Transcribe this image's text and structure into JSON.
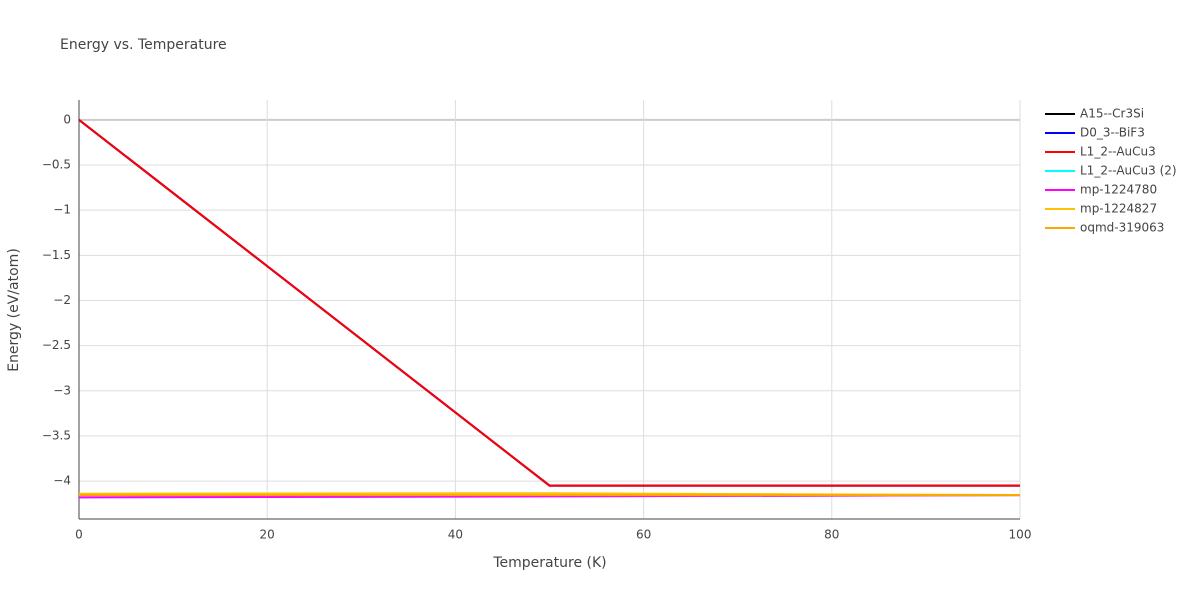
{
  "chart_data": {
    "type": "line",
    "title": "Energy vs. Temperature",
    "x_label": "Temperature (K)",
    "y_label": "Energy (eV/atom)",
    "x": [
      0,
      50,
      100
    ],
    "series": [
      {
        "name": "A15--Cr3Si",
        "color": "#000000",
        "values": [
          0,
          -4.05,
          -4.05
        ]
      },
      {
        "name": "D0_3--BiF3",
        "color": "#0000ff",
        "values": [
          0,
          -4.05,
          -4.05
        ]
      },
      {
        "name": "L1_2--AuCu3",
        "color": "#ff0000",
        "values": [
          0,
          -4.05,
          -4.05
        ]
      },
      {
        "name": "L1_2--AuCu3 (2)",
        "color": "#00ffff",
        "values": [
          -4.18,
          -4.17,
          -4.155
        ]
      },
      {
        "name": "mp-1224780",
        "color": "#ff00ff",
        "values": [
          -4.18,
          -4.17,
          -4.155
        ]
      },
      {
        "name": "mp-1224827",
        "color": "#ffc000",
        "values": [
          -4.14,
          -4.135,
          -4.155
        ]
      },
      {
        "name": "oqmd-319063",
        "color": "#ffa500",
        "values": [
          -4.155,
          -4.155,
          -4.155
        ]
      }
    ],
    "xlim": [
      0,
      100
    ],
    "xticks": [
      0,
      20,
      40,
      60,
      80,
      100
    ],
    "ylim": [
      -4.42,
      0.22
    ],
    "yticks": [
      0,
      {
        "value": -0.5,
        "label": "−0.5"
      },
      {
        "value": -1,
        "label": "−1"
      },
      {
        "value": -1.5,
        "label": "−1.5"
      },
      {
        "value": -2,
        "label": "−2"
      },
      {
        "value": -2.5,
        "label": "−2.5"
      },
      {
        "value": -3,
        "label": "−3"
      },
      {
        "value": -3.5,
        "label": "−3.5"
      },
      {
        "value": -4,
        "label": "−4"
      }
    ],
    "grid": true
  }
}
